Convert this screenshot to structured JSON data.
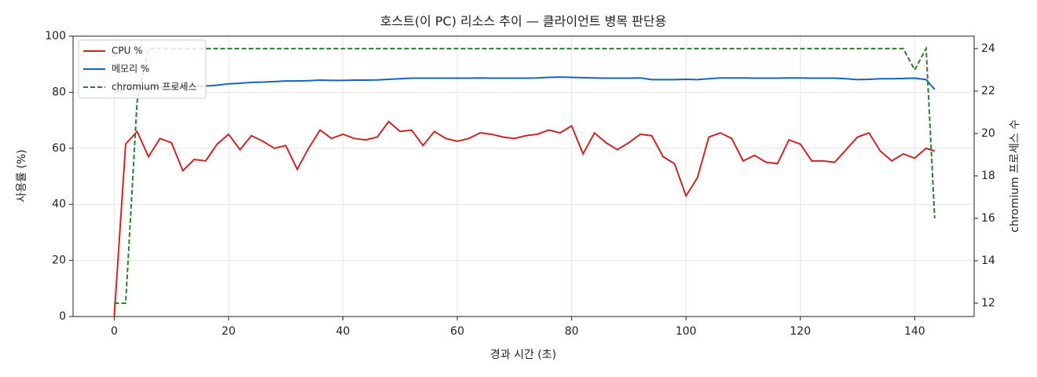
{
  "chart_data": {
    "type": "line",
    "title": "호스트(이 PC) 리소스 추이 — 클라이언트 병목 판단용",
    "x_label": "경과 시간 (초)",
    "y_label": "사용률 (%)",
    "y2_label": "chromium 프로세스 수",
    "x": [
      0,
      2,
      4,
      6,
      8,
      10,
      12,
      14,
      16,
      18,
      20,
      22,
      24,
      26,
      28,
      30,
      32,
      34,
      36,
      38,
      40,
      42,
      44,
      46,
      48,
      50,
      52,
      54,
      56,
      58,
      60,
      62,
      64,
      66,
      68,
      70,
      72,
      74,
      76,
      78,
      80,
      82,
      84,
      86,
      88,
      90,
      92,
      94,
      96,
      98,
      100,
      102,
      104,
      106,
      108,
      110,
      112,
      114,
      116,
      118,
      120,
      122,
      124,
      126,
      128,
      130,
      132,
      134,
      136,
      138,
      140,
      142,
      143.5
    ],
    "series": [
      {
        "name": "CPU %",
        "color": "#c62828",
        "style": "solid",
        "values": [
          0,
          61.5,
          66,
          57,
          63.5,
          62,
          52,
          56,
          55.5,
          61.5,
          65,
          59.5,
          64.5,
          62.5,
          60,
          61,
          52.5,
          60,
          66.5,
          63.5,
          65,
          63.5,
          63,
          64,
          69.5,
          66,
          66.5,
          61,
          66,
          63.5,
          62.5,
          63.5,
          65.5,
          65,
          64,
          63.5,
          64.5,
          65,
          66.5,
          65.5,
          68,
          58,
          65.5,
          62,
          59.5,
          62,
          65,
          64.5,
          57,
          54.5,
          43,
          49.5,
          64,
          65.5,
          63.5,
          55.5,
          57.5,
          55,
          54.5,
          63,
          61.5,
          55.5,
          55.5,
          55,
          59.5,
          64,
          65.5,
          59,
          55.5,
          58,
          56.5,
          60,
          59
        ]
      },
      {
        "name": "메모리 %",
        "color": "#1565c0",
        "style": "solid",
        "values": [
          80,
          81,
          81.5,
          81.5,
          81.8,
          82,
          82,
          82,
          82.2,
          82.5,
          83,
          83.2,
          83.5,
          83.6,
          83.8,
          84,
          84,
          84.1,
          84.3,
          84.2,
          84.2,
          84.3,
          84.3,
          84.4,
          84.6,
          84.8,
          85,
          85,
          85,
          85,
          85,
          85,
          85.1,
          85,
          85,
          85,
          85,
          85.1,
          85.3,
          85.4,
          85.3,
          85.2,
          85.1,
          85,
          85,
          85,
          85.1,
          84.5,
          84.5,
          84.5,
          84.6,
          84.5,
          84.8,
          85.1,
          85.1,
          85.1,
          85,
          85,
          85,
          85.1,
          85.1,
          85,
          85,
          85,
          84.8,
          84.5,
          84.6,
          84.8,
          84.8,
          84.9,
          85,
          84.5,
          81
        ]
      },
      {
        "name": "chromium 프로세스",
        "color": "#2e7d32",
        "style": "dashed",
        "axis": "y2",
        "values": [
          12,
          12,
          21.5,
          24,
          24,
          24,
          24,
          24,
          24,
          24,
          24,
          24,
          24,
          24,
          24,
          24,
          24,
          24,
          24,
          24,
          24,
          24,
          24,
          24,
          24,
          24,
          24,
          24,
          24,
          24,
          24,
          24,
          24,
          24,
          24,
          24,
          24,
          24,
          24,
          24,
          24,
          24,
          24,
          24,
          24,
          24,
          24,
          24,
          24,
          24,
          24,
          24,
          24,
          24,
          24,
          24,
          24,
          24,
          24,
          24,
          24,
          24,
          24,
          24,
          24,
          24,
          24,
          24,
          24,
          24,
          23,
          24,
          16
        ]
      }
    ],
    "xlim": [
      -7.2,
      150.4
    ],
    "ylim": [
      0,
      100
    ],
    "y2lim": [
      11.37,
      24.59
    ],
    "xticks": [
      0,
      20,
      40,
      60,
      80,
      100,
      120,
      140
    ],
    "yticks": [
      0,
      20,
      40,
      60,
      80,
      100
    ],
    "y2ticks": [
      12,
      14,
      16,
      18,
      20,
      22,
      24
    ],
    "grid": true,
    "legend": "upper left"
  }
}
